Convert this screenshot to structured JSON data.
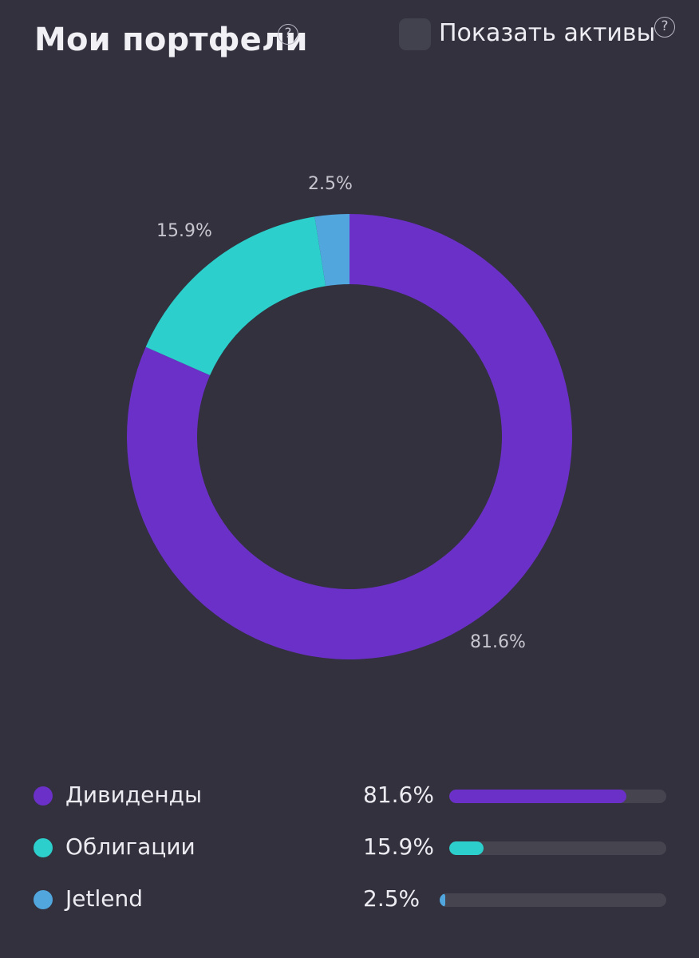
{
  "header": {
    "title": "Мои портфели",
    "show_assets_label": "Показать активы",
    "help_icon": "question-circle-icon",
    "show_assets_checked": false
  },
  "colors": {
    "background": "#32313d",
    "track": "#45444f",
    "dividends": "#6b30c7",
    "bonds": "#2ccfcb",
    "jetlend": "#52a6de"
  },
  "chart_data": {
    "type": "pie",
    "variant": "donut",
    "categories": [
      "Дивиденды",
      "Облигации",
      "Jetlend"
    ],
    "values": [
      81.6,
      15.9,
      2.5
    ],
    "labels": [
      "81.6%",
      "15.9%",
      "2.5%"
    ],
    "colors": [
      "#6b30c7",
      "#2ccfcb",
      "#52a6de"
    ]
  },
  "legend": [
    {
      "name": "Дивиденды",
      "value": "81.6%",
      "fraction": 0.816,
      "color": "#6b30c7"
    },
    {
      "name": "Облигации",
      "value": "15.9%",
      "fraction": 0.159,
      "color": "#2ccfcb"
    },
    {
      "name": "Jetlend",
      "value": "2.5%",
      "fraction": 0.025,
      "color": "#52a6de"
    }
  ]
}
